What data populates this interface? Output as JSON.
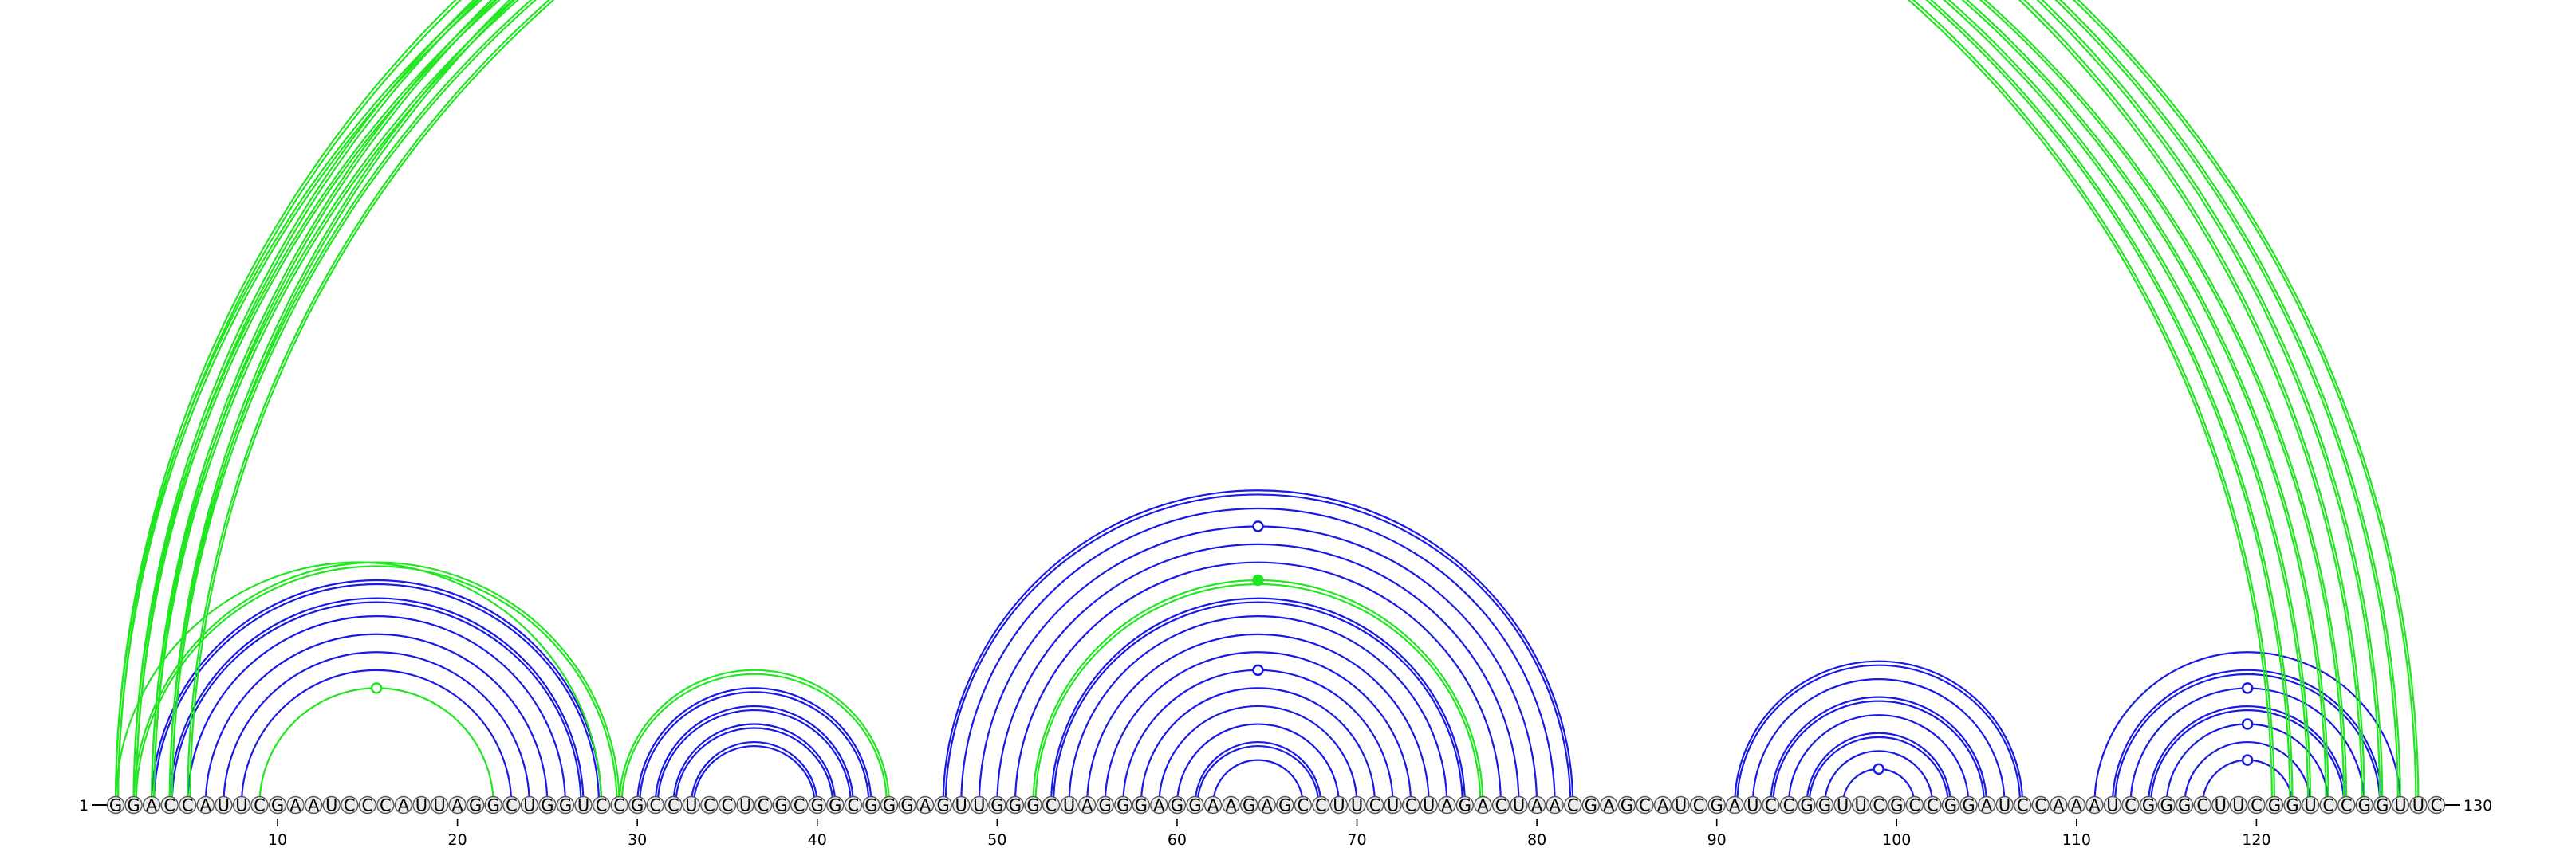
{
  "diagram": {
    "type": "arc-diagram",
    "sequence": "GGACCAUUCGAAUCCCAUUAGGCUGGUCCGCCUCCUCGCGGCGGGAGUUGGGCUAGGGAGGAAGAGCCUUCUCUAGACUAACGAGCAUCGAUCCGGUUCGCCGGAUCCAAAUCGGGCUUCGGUCCGGUUC",
    "start_label": "1",
    "end_label": "130",
    "tick_labels": [
      "10",
      "20",
      "30",
      "40",
      "50",
      "60",
      "70",
      "80",
      "90",
      "100",
      "110",
      "120"
    ],
    "tick_positions": [
      10,
      20,
      30,
      40,
      50,
      60,
      70,
      80,
      90,
      100,
      110,
      120
    ],
    "colors": {
      "blue": "#1a1ae6",
      "green": "#22e622",
      "circle_fill": "#ebebeb",
      "circle_stroke": "#555555"
    },
    "arc_groups": [
      {
        "color": "blue",
        "pairs": [
          [
            3,
            28
          ],
          [
            4,
            27
          ],
          [
            5,
            26
          ],
          [
            6,
            25
          ],
          [
            7,
            24
          ],
          [
            8,
            23
          ]
        ],
        "doubled": [
          0,
          1
        ],
        "marker": null
      },
      {
        "color": "green",
        "pairs": [
          [
            9,
            22
          ]
        ],
        "doubled": [],
        "marker": "hollow"
      },
      {
        "color": "green",
        "pairs": [
          [
            2,
            29
          ],
          [
            1,
            28
          ]
        ],
        "doubled": [
          0
        ],
        "marker": null
      },
      {
        "color": "blue",
        "pairs": [
          [
            30,
            43
          ],
          [
            31,
            42
          ],
          [
            32,
            41
          ],
          [
            33,
            40
          ]
        ],
        "doubled": [
          0,
          1,
          2,
          3
        ],
        "marker": null
      },
      {
        "color": "green",
        "pairs": [
          [
            29,
            44
          ]
        ],
        "doubled": [
          0
        ],
        "marker": null
      },
      {
        "color": "blue",
        "pairs": [
          [
            47,
            82
          ],
          [
            48,
            81
          ],
          [
            49,
            80
          ],
          [
            50,
            79
          ],
          [
            51,
            78
          ],
          [
            53,
            76
          ],
          [
            54,
            75
          ],
          [
            55,
            74
          ],
          [
            56,
            73
          ],
          [
            57,
            72
          ],
          [
            58,
            71
          ],
          [
            59,
            70
          ],
          [
            60,
            69
          ],
          [
            61,
            68
          ],
          [
            62,
            67
          ]
        ],
        "doubled": [
          0,
          5,
          13
        ],
        "marker": null
      },
      {
        "color": "green",
        "pairs": [
          [
            52,
            77
          ]
        ],
        "doubled": [
          0
        ],
        "marker": null
      },
      {
        "color": "blue",
        "pairs": [
          [
            91,
            107
          ],
          [
            92,
            106
          ],
          [
            93,
            105
          ],
          [
            94,
            104
          ],
          [
            95,
            103
          ],
          [
            96,
            102
          ],
          [
            97,
            101
          ]
        ],
        "doubled": [
          0,
          2,
          4
        ],
        "marker": null
      },
      {
        "color": "blue",
        "pairs": [
          [
            111,
            128
          ],
          [
            112,
            127
          ],
          [
            113,
            126
          ],
          [
            114,
            125
          ],
          [
            115,
            124
          ],
          [
            116,
            123
          ],
          [
            117,
            122
          ]
        ],
        "doubled": [
          1,
          3
        ],
        "marker": null
      },
      {
        "color": "green",
        "pairs": [
          [
            1,
            121
          ],
          [
            2,
            122
          ],
          [
            3,
            123
          ],
          [
            4,
            124
          ],
          [
            5,
            125
          ],
          [
            1,
            126
          ],
          [
            2,
            127
          ],
          [
            3,
            128
          ],
          [
            4,
            129
          ]
        ],
        "doubled": [
          0,
          1,
          2,
          3,
          4,
          5,
          6,
          7,
          8
        ],
        "marker": null
      }
    ],
    "markers": [
      {
        "at": 65.5,
        "depth_pair": [
          1,
          129
        ],
        "style": "hollow",
        "color": "green",
        "offset": 18
      },
      {
        "at": 64.5,
        "depth_pair": [
          49,
          80
        ],
        "style": "hollow",
        "color": "blue",
        "offset": 0
      },
      {
        "at": 64.5,
        "depth_pair": [
          52,
          77
        ],
        "style": "filled",
        "color": "green",
        "offset": 0
      },
      {
        "at": 64.5,
        "depth_pair": [
          57,
          72
        ],
        "style": "hollow",
        "color": "blue",
        "offset": 0
      },
      {
        "at": 15.5,
        "depth_pair": [
          9,
          22
        ],
        "style": "hollow",
        "color": "green",
        "offset": 0
      },
      {
        "at": 99,
        "depth_pair": [
          97,
          101
        ],
        "style": "hollow",
        "color": "blue",
        "offset": 0
      },
      {
        "at": 119.5,
        "depth_pair": [
          113,
          126
        ],
        "style": "hollow",
        "color": "blue",
        "offset": 0
      },
      {
        "at": 119.5,
        "depth_pair": [
          115,
          124
        ],
        "style": "hollow",
        "color": "blue",
        "offset": 0
      },
      {
        "at": 119.5,
        "depth_pair": [
          117,
          122
        ],
        "style": "hollow",
        "color": "blue",
        "offset": 0
      }
    ]
  }
}
